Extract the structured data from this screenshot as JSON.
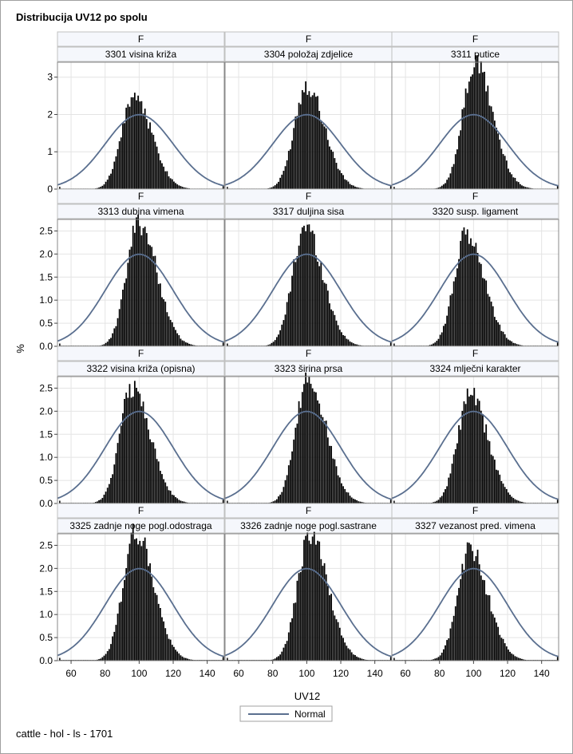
{
  "title": "Distribucija UV12 po spolu",
  "footer": "cattle - hol - ls - 1701",
  "chart_data": {
    "type": "histogram-panel",
    "xlabel": "UV12",
    "ylabel": "%",
    "xlim": [
      52,
      150
    ],
    "xticks": [
      60,
      80,
      100,
      120,
      140
    ],
    "legend": {
      "placement": "bottom-center",
      "entries": [
        "Normal"
      ]
    },
    "colors": {
      "bars": "#000000",
      "normal_curve": "#5a6f8f",
      "header_bg": "#f5f7fc",
      "grid": "#e4e4e4"
    },
    "normal_curve": {
      "mean": 100,
      "sd": 20
    },
    "rows": [
      {
        "ylim": [
          0,
          3.4
        ],
        "yticks": [
          0,
          1,
          2,
          3
        ]
      },
      {
        "ylim": [
          0,
          2.75
        ],
        "yticks": [
          0.0,
          0.5,
          1.0,
          1.5,
          2.0,
          2.5
        ]
      },
      {
        "ylim": [
          0,
          2.75
        ],
        "yticks": [
          0.0,
          0.5,
          1.0,
          1.5,
          2.0,
          2.5
        ]
      },
      {
        "ylim": [
          0,
          2.75
        ],
        "yticks": [
          0.0,
          0.5,
          1.0,
          1.5,
          2.0,
          2.5
        ]
      }
    ],
    "panels": [
      {
        "group": "F",
        "name": "3301 visina križa",
        "peak": 2.5,
        "mode": 97
      },
      {
        "group": "F",
        "name": "3304 položaj zdjelice",
        "peak": 2.8,
        "mode": 100
      },
      {
        "group": "F",
        "name": "3311 putice",
        "peak": 3.35,
        "mode": 101
      },
      {
        "group": "F",
        "name": "3313 dubina vimena",
        "peak": 2.7,
        "mode": 100
      },
      {
        "group": "F",
        "name": "3317 duljina sisa",
        "peak": 2.6,
        "mode": 99
      },
      {
        "group": "F",
        "name": "3320 susp. ligament",
        "peak": 2.42,
        "mode": 96
      },
      {
        "group": "F",
        "name": "3322 visina križa (opisna)",
        "peak": 2.52,
        "mode": 96
      },
      {
        "group": "F",
        "name": "3323 širina prsa",
        "peak": 2.7,
        "mode": 101
      },
      {
        "group": "F",
        "name": "3324 mlječni karakter",
        "peak": 2.35,
        "mode": 98
      },
      {
        "group": "F",
        "name": "3325 zadnje noge pogl.odostraga",
        "peak": 2.8,
        "mode": 98
      },
      {
        "group": "F",
        "name": "3326 zadnje noge pogl.sastrane",
        "peak": 2.72,
        "mode": 102
      },
      {
        "group": "F",
        "name": "3327 vezanost pred. vimena",
        "peak": 2.4,
        "mode": 98
      }
    ]
  }
}
